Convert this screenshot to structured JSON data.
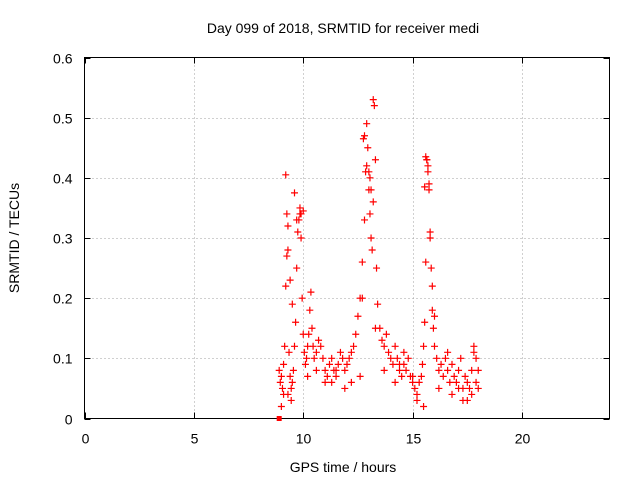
{
  "chart_data": {
    "type": "scatter",
    "title": "Day 099 of 2018, SRMTID for receiver medi",
    "xlabel": "GPS time / hours",
    "ylabel": "SRMTID / TECUs",
    "xlim": [
      0,
      24
    ],
    "ylim": [
      0,
      0.6
    ],
    "xticks": [
      0,
      5,
      10,
      15,
      20
    ],
    "yticks": [
      0,
      0.1,
      0.2,
      0.3,
      0.4,
      0.5,
      0.6
    ],
    "xtick_labels": [
      "0",
      "5",
      "10",
      "15",
      "20"
    ],
    "ytick_labels": [
      "0",
      "0.1",
      "0.2",
      "0.3",
      "0.4",
      "0.5",
      "0.6"
    ],
    "grid": true,
    "marker": "+",
    "color": "#ff0000",
    "series": [
      {
        "x": [
          8.9,
          8.95,
          9.0,
          9.05,
          9.1,
          9.15,
          9.2,
          9.25,
          9.3,
          9.35,
          9.4,
          9.45,
          9.5,
          9.55,
          9.6,
          9.65,
          9.7,
          9.75,
          9.8,
          9.85,
          9.9,
          9.95,
          10.0,
          10.05,
          10.1,
          10.15,
          10.2,
          10.25,
          10.3,
          10.35,
          10.4,
          10.45,
          10.5,
          10.6,
          10.7,
          10.8,
          10.9,
          11.0,
          11.1,
          11.2,
          11.3,
          11.4,
          11.5,
          11.6,
          11.7,
          11.8,
          11.9,
          12.0,
          12.1,
          12.2,
          12.3,
          12.4,
          12.5,
          12.6,
          12.7,
          12.8,
          12.85,
          12.9,
          12.95,
          13.0,
          13.05,
          13.1,
          13.15,
          13.2,
          13.25,
          13.3,
          13.35,
          13.4,
          13.5,
          13.6,
          13.7,
          13.8,
          13.9,
          14.0,
          14.1,
          14.2,
          14.3,
          14.4,
          14.5,
          14.6,
          14.7,
          14.8,
          14.9,
          15.0,
          15.1,
          15.2,
          15.3,
          15.4,
          15.45,
          15.5,
          15.55,
          15.6,
          15.65,
          15.7,
          15.75,
          15.8,
          15.85,
          15.9,
          15.95,
          16.0,
          16.1,
          16.2,
          16.3,
          16.4,
          16.5,
          16.6,
          16.7,
          16.8,
          16.9,
          17.0,
          17.1,
          17.2,
          17.3,
          17.4,
          17.5,
          17.6,
          17.7,
          17.8,
          17.9,
          18.0,
          9.2,
          9.3,
          9.6,
          9.7,
          9.85,
          9.9,
          10.0,
          12.75,
          12.8,
          12.9,
          13.0,
          13.05,
          13.1,
          15.6,
          15.65,
          15.7,
          15.75,
          15.8,
          15.9,
          9.25,
          9.4,
          9.5,
          12.7,
          13.2,
          15.55,
          16.0,
          17.8,
          17.9,
          9.1,
          9.45,
          10.2,
          11.0,
          11.5,
          12.2,
          13.3,
          14.2,
          14.6,
          15.2,
          16.2,
          16.8,
          17.3,
          17.7,
          9.0,
          9.3,
          10.6,
          11.3,
          11.9,
          12.6,
          13.7,
          14.4,
          15.0,
          15.5,
          16.6,
          17.1,
          17.5,
          18.0
        ],
        "y": [
          0.08,
          0.06,
          0.07,
          0.05,
          0.09,
          0.12,
          0.22,
          0.34,
          0.28,
          0.11,
          0.07,
          0.05,
          0.06,
          0.08,
          0.12,
          0.16,
          0.25,
          0.31,
          0.33,
          0.35,
          0.3,
          0.2,
          0.14,
          0.11,
          0.09,
          0.1,
          0.12,
          0.14,
          0.18,
          0.21,
          0.15,
          0.12,
          0.1,
          0.11,
          0.13,
          0.12,
          0.1,
          0.08,
          0.07,
          0.09,
          0.1,
          0.08,
          0.07,
          0.09,
          0.11,
          0.1,
          0.08,
          0.09,
          0.1,
          0.11,
          0.12,
          0.14,
          0.17,
          0.2,
          0.26,
          0.33,
          0.41,
          0.49,
          0.45,
          0.38,
          0.34,
          0.3,
          0.28,
          0.53,
          0.52,
          0.43,
          0.25,
          0.19,
          0.15,
          0.13,
          0.12,
          0.14,
          0.11,
          0.1,
          0.09,
          0.12,
          0.1,
          0.08,
          0.07,
          0.09,
          0.08,
          0.1,
          0.07,
          0.06,
          0.05,
          0.04,
          0.06,
          0.07,
          0.09,
          0.12,
          0.16,
          0.26,
          0.43,
          0.42,
          0.38,
          0.31,
          0.25,
          0.18,
          0.15,
          0.12,
          0.1,
          0.08,
          0.09,
          0.07,
          0.1,
          0.08,
          0.06,
          0.09,
          0.07,
          0.06,
          0.08,
          0.1,
          0.05,
          0.07,
          0.06,
          0.05,
          0.08,
          0.12,
          0.06,
          0.08,
          0.405,
          0.32,
          0.375,
          0.33,
          0.34,
          0.34,
          0.345,
          0.465,
          0.47,
          0.42,
          0.41,
          0.4,
          0.38,
          0.435,
          0.43,
          0.41,
          0.39,
          0.3,
          0.22,
          0.27,
          0.23,
          0.19,
          0.2,
          0.36,
          0.385,
          0.17,
          0.11,
          0.1,
          0.04,
          0.03,
          0.07,
          0.06,
          0.08,
          0.06,
          0.15,
          0.06,
          0.11,
          0.03,
          0.05,
          0.04,
          0.03,
          0.04,
          0.02,
          0.04,
          0.08,
          0.06,
          0.05,
          0.07,
          0.08,
          0.09,
          0.07,
          0.02,
          0.11,
          0.05,
          0.03,
          0.05
        ]
      },
      {
        "x": [
          8.9
        ],
        "y": [
          0.0
        ],
        "marker": "filled-square"
      }
    ]
  }
}
